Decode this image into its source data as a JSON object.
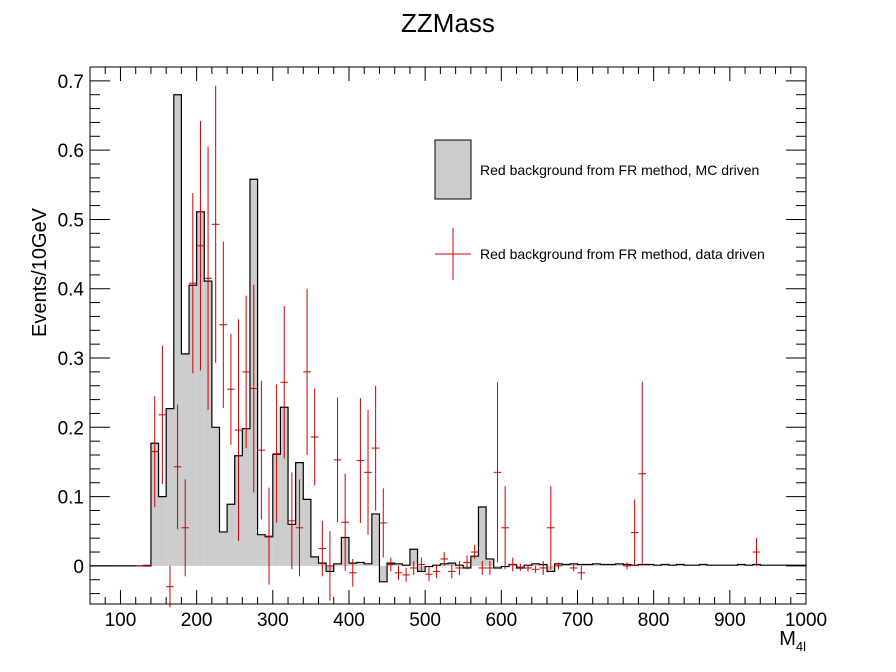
{
  "chart_data": {
    "type": "bar",
    "title": "ZZMass",
    "xlabel": "M",
    "xlabel_sub": "4l",
    "ylabel": "Events/10GeV",
    "xlim": [
      60,
      1000
    ],
    "ylim": [
      -0.055,
      0.72
    ],
    "x_ticks": [
      100,
      200,
      300,
      400,
      500,
      600,
      700,
      800,
      900,
      1000
    ],
    "y_ticks": [
      0,
      0.1,
      0.2,
      0.3,
      0.4,
      0.5,
      0.6,
      0.7
    ],
    "y_tick_labels": [
      "0",
      "0.1",
      "0.2",
      "0.3",
      "0.4",
      "0.5",
      "0.6",
      "0.7"
    ],
    "bin_width": 10,
    "legend_placement": "upper-right",
    "series": [
      {
        "name": "Red background from FR method, MC driven",
        "kind": "histogram",
        "color": "#cccccc",
        "edge_color": "#000000",
        "bins": [
          [
            140,
            0.177
          ],
          [
            150,
            0.1
          ],
          [
            160,
            0.227
          ],
          [
            170,
            0.68
          ],
          [
            180,
            0.306
          ],
          [
            190,
            0.405
          ],
          [
            200,
            0.511
          ],
          [
            210,
            0.411
          ],
          [
            220,
            0.2
          ],
          [
            230,
            0.049
          ],
          [
            240,
            0.089
          ],
          [
            250,
            0.159
          ],
          [
            260,
            0.198
          ],
          [
            270,
            0.558
          ],
          [
            280,
            0.045
          ],
          [
            290,
            0.042
          ],
          [
            300,
            0.161
          ],
          [
            310,
            0.229
          ],
          [
            320,
            0.06
          ],
          [
            330,
            0.149
          ],
          [
            340,
            0.096
          ],
          [
            350,
            0.013
          ],
          [
            360,
            0.004
          ],
          [
            370,
            -0.008
          ],
          [
            380,
            0.003
          ],
          [
            390,
            0.041
          ],
          [
            400,
            0.004
          ],
          [
            410,
            0.005
          ],
          [
            420,
            0.003
          ],
          [
            430,
            0.075
          ],
          [
            440,
            -0.023
          ],
          [
            450,
            0.004
          ],
          [
            460,
            0.003
          ],
          [
            470,
            0.001
          ],
          [
            480,
            0.024
          ],
          [
            490,
            -0.008
          ],
          [
            500,
            -0.001
          ],
          [
            510,
            0.001
          ],
          [
            520,
            0.003
          ],
          [
            530,
            0.004
          ],
          [
            540,
            0.001
          ],
          [
            550,
            -0.003
          ],
          [
            560,
            0.014
          ],
          [
            570,
            0.085
          ],
          [
            580,
            0.01
          ],
          [
            590,
            -0.003
          ],
          [
            600,
            -0.001
          ],
          [
            610,
            0.002
          ],
          [
            620,
            -0.003
          ],
          [
            630,
            0.001
          ],
          [
            640,
            0.003
          ],
          [
            650,
            0.002
          ],
          [
            660,
            -0.008
          ],
          [
            670,
            0.003
          ],
          [
            680,
            0.002
          ],
          [
            690,
            0.003
          ],
          [
            700,
            0.002
          ],
          [
            710,
            0.002
          ],
          [
            720,
            0.003
          ],
          [
            730,
            0.002
          ],
          [
            740,
            0.002
          ],
          [
            750,
            0.003
          ],
          [
            760,
            0.002
          ],
          [
            770,
            0.001
          ],
          [
            780,
            0.002
          ],
          [
            790,
            0.002
          ],
          [
            800,
            0.001
          ],
          [
            810,
            0.002
          ],
          [
            820,
            0.001
          ],
          [
            830,
            0.002
          ],
          [
            840,
            0.001
          ],
          [
            850,
            0.001
          ],
          [
            860,
            0.002
          ],
          [
            870,
            0.001
          ],
          [
            880,
            0.001
          ],
          [
            890,
            0.001
          ],
          [
            900,
            0.001
          ],
          [
            910,
            0.002
          ],
          [
            920,
            0.001
          ],
          [
            930,
            0.002
          ],
          [
            940,
            0.001
          ],
          [
            950,
            0.001
          ],
          [
            960,
            0.001
          ],
          [
            970,
            0.001
          ],
          [
            980,
            0.001
          ],
          [
            990,
            0.001
          ]
        ]
      },
      {
        "name": "Red background from FR method, data driven",
        "kind": "errorbars",
        "color": "#cc0000",
        "points": [
          [
            125,
            0.0,
            0.0
          ],
          [
            135,
            0.001,
            0.0
          ],
          [
            145,
            0.165,
            0.08
          ],
          [
            155,
            0.218,
            0.1
          ],
          [
            165,
            -0.03,
            0.03
          ],
          [
            175,
            0.143,
            0.09
          ],
          [
            185,
            0.055,
            0.07
          ],
          [
            195,
            0.408,
            0.13
          ],
          [
            205,
            0.462,
            0.18
          ],
          [
            215,
            0.415,
            0.19
          ],
          [
            225,
            0.493,
            0.2
          ],
          [
            235,
            0.348,
            0.12
          ],
          [
            245,
            0.255,
            0.08
          ],
          [
            255,
            0.196,
            0.16
          ],
          [
            265,
            0.28,
            0.11
          ],
          [
            275,
            0.256,
            0.15
          ],
          [
            285,
            0.167,
            0.1
          ],
          [
            295,
            0.043,
            0.07
          ],
          [
            305,
            0.162,
            0.1
          ],
          [
            315,
            0.265,
            0.11
          ],
          [
            325,
            0.065,
            0.07
          ],
          [
            335,
            0.055,
            0.07
          ],
          [
            345,
            0.28,
            0.12
          ],
          [
            355,
            0.186,
            0.07
          ],
          [
            365,
            0.025,
            0.04
          ],
          [
            375,
            0.0,
            0.05
          ],
          [
            385,
            0.153,
            0.09
          ],
          [
            395,
            0.063,
            0.07
          ],
          [
            405,
            -0.01,
            0.02
          ],
          [
            415,
            0.152,
            0.09
          ],
          [
            425,
            0.135,
            0.09
          ],
          [
            435,
            0.17,
            0.09
          ],
          [
            445,
            0.062,
            0.05
          ],
          [
            455,
            0.002,
            0.01
          ],
          [
            465,
            -0.01,
            0.01
          ],
          [
            475,
            -0.013,
            0.01
          ],
          [
            485,
            -0.003,
            0.01
          ],
          [
            495,
            0.002,
            0.01
          ],
          [
            505,
            -0.012,
            0.01
          ],
          [
            515,
            -0.008,
            0.01
          ],
          [
            525,
            0.01,
            0.01
          ],
          [
            535,
            -0.008,
            0.01
          ],
          [
            545,
            -0.003,
            0.01
          ],
          [
            555,
            0.005,
            0.01
          ],
          [
            565,
            0.02,
            0.01
          ],
          [
            575,
            -0.003,
            0.01
          ],
          [
            585,
            -0.003,
            0.01
          ],
          [
            595,
            0.135,
            0.13
          ],
          [
            605,
            0.055,
            0.06
          ],
          [
            615,
            0.002,
            0.01
          ],
          [
            625,
            -0.002,
            0.005
          ],
          [
            635,
            -0.003,
            0.005
          ],
          [
            645,
            -0.005,
            0.005
          ],
          [
            655,
            -0.003,
            0.01
          ],
          [
            665,
            0.055,
            0.06
          ],
          [
            675,
            0.0,
            0.005
          ],
          [
            695,
            -0.003,
            0.005
          ],
          [
            705,
            -0.01,
            0.01
          ],
          [
            765,
            0.0,
            0.005
          ],
          [
            775,
            0.048,
            0.048
          ],
          [
            785,
            0.133,
            0.133
          ],
          [
            935,
            0.02,
            0.02
          ]
        ]
      }
    ]
  }
}
